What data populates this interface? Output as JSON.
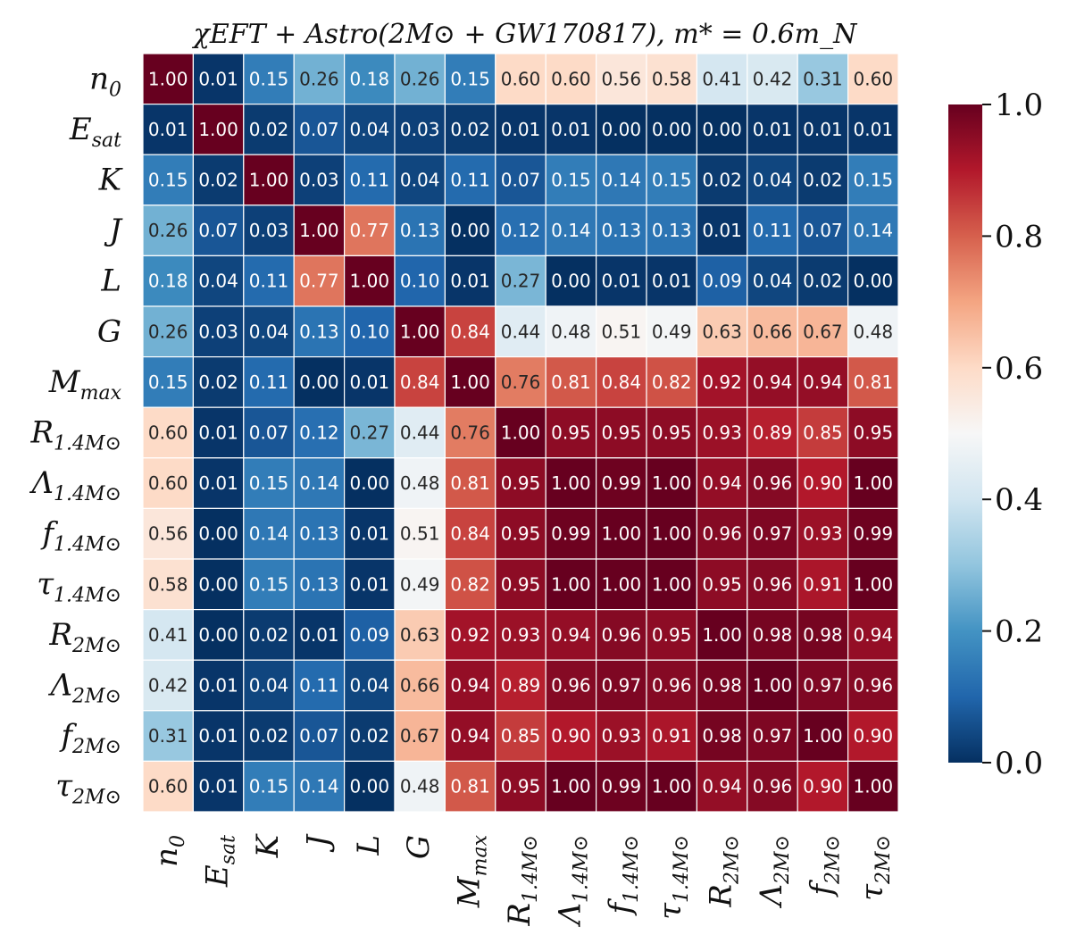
{
  "chart_data": {
    "type": "heatmap",
    "title": "χEFT + Astro(2M⊙ + GW170817),  m* = 0.6m_N",
    "row_labels": [
      {
        "base": "n",
        "sub": "0"
      },
      {
        "base": "E",
        "sub": "sat"
      },
      {
        "base": "K",
        "sub": ""
      },
      {
        "base": "J",
        "sub": ""
      },
      {
        "base": "L",
        "sub": ""
      },
      {
        "base": "G",
        "sub": ""
      },
      {
        "base": "M",
        "sub": "max"
      },
      {
        "base": "R",
        "sub": "1.4M⊙"
      },
      {
        "base": "Λ",
        "sub": "1.4M⊙"
      },
      {
        "base": "f",
        "sub": "1.4M⊙"
      },
      {
        "base": "τ",
        "sub": "1.4M⊙"
      },
      {
        "base": "R",
        "sub": "2M⊙"
      },
      {
        "base": "Λ",
        "sub": "2M⊙"
      },
      {
        "base": "f",
        "sub": "2M⊙"
      },
      {
        "base": "τ",
        "sub": "2M⊙"
      }
    ],
    "matrix": [
      [
        1.0,
        0.01,
        0.15,
        0.26,
        0.18,
        0.26,
        0.15,
        0.6,
        0.6,
        0.56,
        0.58,
        0.41,
        0.42,
        0.31,
        0.6
      ],
      [
        0.01,
        1.0,
        0.02,
        0.07,
        0.04,
        0.03,
        0.02,
        0.01,
        0.01,
        0.0,
        0.0,
        0.0,
        0.01,
        0.01,
        0.01
      ],
      [
        0.15,
        0.02,
        1.0,
        0.03,
        0.11,
        0.04,
        0.11,
        0.07,
        0.15,
        0.14,
        0.15,
        0.02,
        0.04,
        0.02,
        0.15
      ],
      [
        0.26,
        0.07,
        0.03,
        1.0,
        0.77,
        0.13,
        0.0,
        0.12,
        0.14,
        0.13,
        0.13,
        0.01,
        0.11,
        0.07,
        0.14
      ],
      [
        0.18,
        0.04,
        0.11,
        0.77,
        1.0,
        0.1,
        0.01,
        0.27,
        0.0,
        0.01,
        0.01,
        0.09,
        0.04,
        0.02,
        0.0
      ],
      [
        0.26,
        0.03,
        0.04,
        0.13,
        0.1,
        1.0,
        0.84,
        0.44,
        0.48,
        0.51,
        0.49,
        0.63,
        0.66,
        0.67,
        0.48
      ],
      [
        0.15,
        0.02,
        0.11,
        0.0,
        0.01,
        0.84,
        1.0,
        0.76,
        0.81,
        0.84,
        0.82,
        0.92,
        0.94,
        0.94,
        0.81
      ],
      [
        0.6,
        0.01,
        0.07,
        0.12,
        0.27,
        0.44,
        0.76,
        1.0,
        0.95,
        0.95,
        0.95,
        0.93,
        0.89,
        0.85,
        0.95
      ],
      [
        0.6,
        0.01,
        0.15,
        0.14,
        0.0,
        0.48,
        0.81,
        0.95,
        1.0,
        0.99,
        1.0,
        0.94,
        0.96,
        0.9,
        1.0
      ],
      [
        0.56,
        0.0,
        0.14,
        0.13,
        0.01,
        0.51,
        0.84,
        0.95,
        0.99,
        1.0,
        1.0,
        0.96,
        0.97,
        0.93,
        0.99
      ],
      [
        0.58,
        0.0,
        0.15,
        0.13,
        0.01,
        0.49,
        0.82,
        0.95,
        1.0,
        1.0,
        1.0,
        0.95,
        0.96,
        0.91,
        1.0
      ],
      [
        0.41,
        0.0,
        0.02,
        0.01,
        0.09,
        0.63,
        0.92,
        0.93,
        0.94,
        0.96,
        0.95,
        1.0,
        0.98,
        0.98,
        0.94
      ],
      [
        0.42,
        0.01,
        0.04,
        0.11,
        0.04,
        0.66,
        0.94,
        0.89,
        0.96,
        0.97,
        0.96,
        0.98,
        1.0,
        0.97,
        0.96
      ],
      [
        0.31,
        0.01,
        0.02,
        0.07,
        0.02,
        0.67,
        0.94,
        0.85,
        0.9,
        0.93,
        0.91,
        0.98,
        0.97,
        1.0,
        0.9
      ],
      [
        0.6,
        0.01,
        0.15,
        0.14,
        0.0,
        0.48,
        0.81,
        0.95,
        1.0,
        0.99,
        1.0,
        0.94,
        0.96,
        0.9,
        1.0
      ]
    ],
    "colorbar": {
      "min": 0.0,
      "max": 1.0,
      "ticks": [
        "0.0",
        "0.2",
        "0.4",
        "0.6",
        "0.8",
        "1.0"
      ],
      "colormap": "RdBu_r"
    },
    "colormap_stops": [
      "#053061",
      "#2166ac",
      "#4393c3",
      "#92c5de",
      "#d1e5f0",
      "#f7f7f7",
      "#fddbc7",
      "#f4a582",
      "#d6604d",
      "#b2182b",
      "#67001f"
    ]
  }
}
